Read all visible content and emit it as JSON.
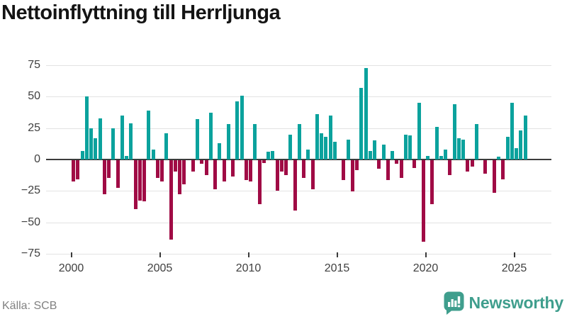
{
  "title": "Nettoinflyttning till Herrljunga",
  "source": "Källa: SCB",
  "brand": {
    "name": "Newsworthy",
    "color": "#3f9e8d",
    "icon": "newsworthy-speech-bubble-bar-chart-icon"
  },
  "chart_data": {
    "type": "bar",
    "title": "Nettoinflyttning till Herrljunga",
    "x_unit": "quarter",
    "x_start": "2000 Q1",
    "x_end": "2025 Q3",
    "values": [
      -17,
      -15,
      7,
      50,
      25,
      17,
      33,
      -27,
      -14,
      25,
      -22,
      35,
      3,
      29,
      -39,
      -32,
      -33,
      39,
      8,
      -14,
      -17,
      21,
      -63,
      -9,
      -27,
      -19,
      0,
      -9,
      32,
      -3,
      -12,
      37,
      -23,
      13,
      -17,
      28,
      -13,
      46,
      51,
      -16,
      -17,
      28,
      -35,
      -2,
      6,
      7,
      -24,
      -9,
      -12,
      20,
      -40,
      28,
      -14,
      8,
      -23,
      36,
      21,
      18,
      35,
      14,
      0,
      -16,
      16,
      -25,
      -8,
      57,
      73,
      7,
      15,
      -7,
      12,
      -16,
      7,
      -3,
      -14,
      20,
      19,
      -6,
      45,
      -65,
      3,
      -35,
      26,
      3,
      8,
      -12,
      44,
      17,
      16,
      -9,
      -5,
      28,
      0,
      -11,
      0,
      -26,
      2,
      -15,
      18,
      45,
      9,
      23,
      35
    ],
    "x_tick_labels": [
      "2000",
      "2005",
      "2010",
      "2015",
      "2020",
      "2025"
    ],
    "y_ticks": [
      75,
      50,
      25,
      0,
      -25,
      -50,
      -75
    ],
    "ylim": [
      -75,
      80
    ],
    "positive_color": "#0ba29d",
    "negative_color": "#a00b45",
    "grid": true,
    "legend": "none"
  }
}
